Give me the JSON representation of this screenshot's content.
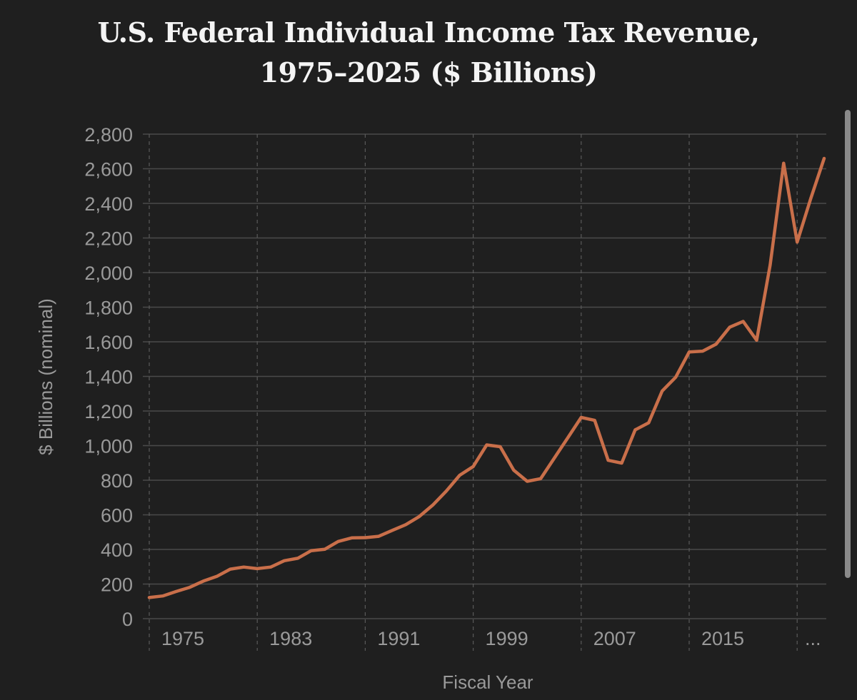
{
  "title_line1": "U.S. Federal Individual Income Tax Revenue,",
  "title_line2": "1975–2025 ($ Billions)",
  "chart_data": {
    "type": "line",
    "title": "U.S. Federal Individual Income Tax Revenue, 1975–2025 ($ Billions)",
    "xlabel": "Fiscal Year",
    "ylabel": "$ Billions (nominal)",
    "ylim": [
      0,
      2800
    ],
    "yticks": [
      0,
      200,
      400,
      600,
      800,
      1000,
      1200,
      1400,
      1600,
      1800,
      2000,
      2200,
      2400,
      2600,
      2800
    ],
    "ytick_labels": [
      "0",
      "200",
      "400",
      "600",
      "800",
      "1,000",
      "1,200",
      "1,400",
      "1,600",
      "1,800",
      "2,000",
      "2,200",
      "2,400",
      "2,600",
      "2,800"
    ],
    "xtick_labels": [
      "1975",
      "1983",
      "1991",
      "1999",
      "2007",
      "2015",
      "..."
    ],
    "xtick_years": [
      1975,
      1983,
      1991,
      1999,
      2007,
      2015,
      2023
    ],
    "grid": "horizontal solid, vertical dashed",
    "line_color": "#c96f4a",
    "series": [
      {
        "x": [
          1975,
          1976,
          1977,
          1978,
          1979,
          1980,
          1981,
          1982,
          1983,
          1984,
          1985,
          1986,
          1987,
          1988,
          1989,
          1990,
          1991,
          1992,
          1993,
          1994,
          1995,
          1996,
          1997,
          1998,
          1999,
          2000,
          2001,
          2002,
          2003,
          2004,
          2005,
          2006,
          2007,
          2008,
          2009,
          2010,
          2011,
          2012,
          2013,
          2014,
          2015,
          2016,
          2017,
          2018,
          2019,
          2020,
          2021,
          2022,
          2023,
          2024,
          2025
        ],
        "values": [
          122,
          131,
          157,
          181,
          217,
          244,
          286,
          298,
          289,
          298,
          335,
          349,
          393,
          401,
          446,
          467,
          468,
          476,
          510,
          543,
          590,
          656,
          737,
          829,
          879,
          1004,
          994,
          858,
          794,
          809,
          927,
          1044,
          1163,
          1146,
          915,
          899,
          1091,
          1132,
          1316,
          1395,
          1541,
          1546,
          1587,
          1684,
          1718,
          1609,
          2044,
          2632,
          2176,
          2426,
          2660
        ]
      }
    ]
  }
}
